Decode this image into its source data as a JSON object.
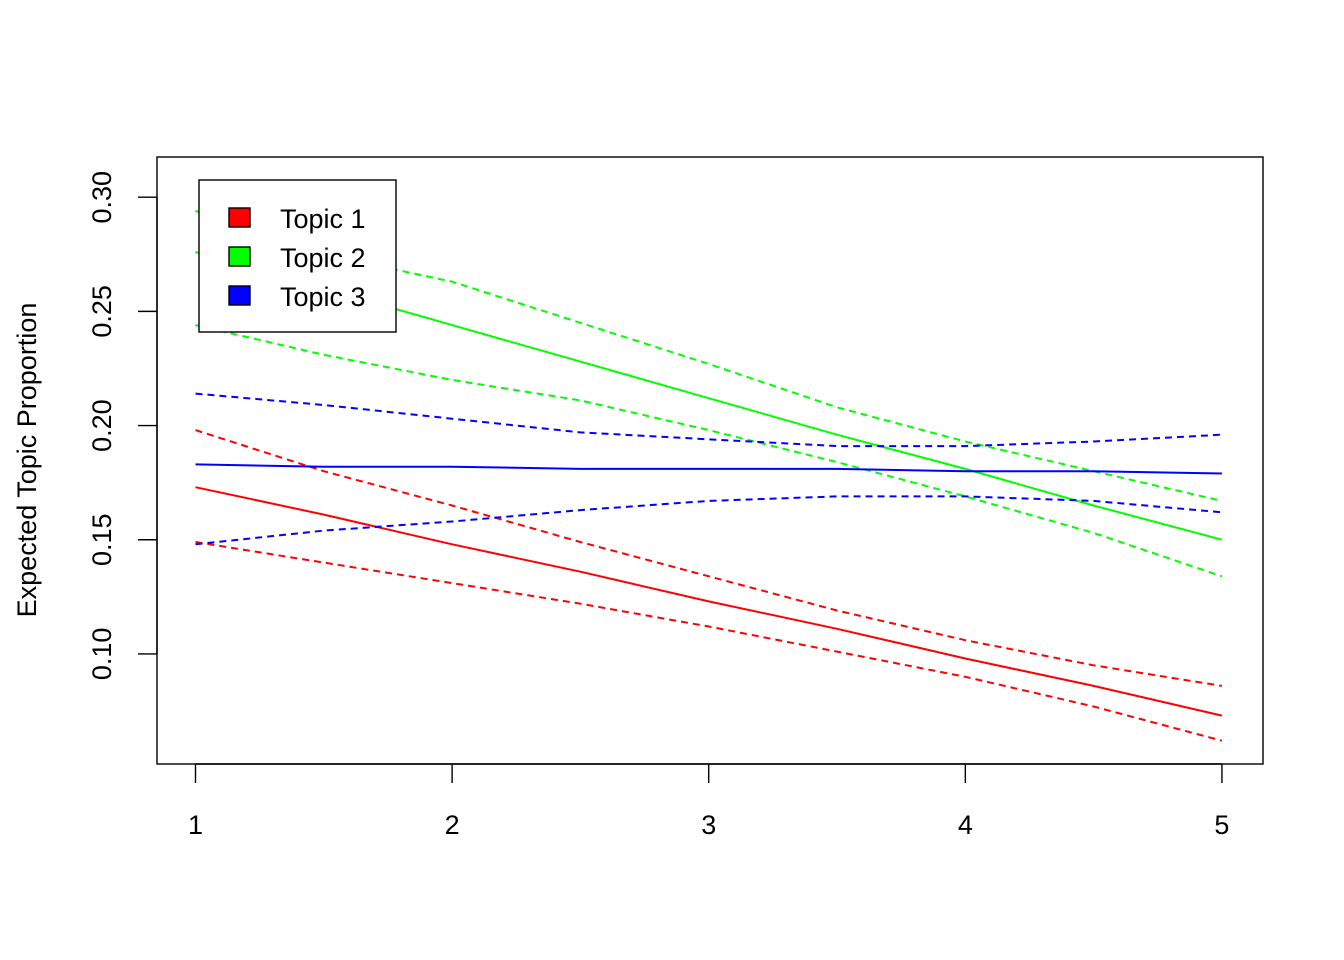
{
  "chart_data": {
    "type": "line",
    "title": "",
    "xlabel": "",
    "ylabel": "Expected Topic Proportion",
    "xlim": [
      0.85,
      5.16
    ],
    "ylim": [
      0.0518,
      0.3176
    ],
    "xticks": [
      1,
      2,
      3,
      4,
      5
    ],
    "xtick_labels": [
      "1",
      "2",
      "3",
      "4",
      "5"
    ],
    "yticks": [
      0.1,
      0.15,
      0.2,
      0.25,
      0.3
    ],
    "ytick_labels": [
      "0.10",
      "0.15",
      "0.20",
      "0.25",
      "0.30"
    ],
    "grid": false,
    "legend_position": "top-left",
    "x": [
      1,
      1.5,
      2,
      2.5,
      3,
      3.5,
      4,
      4.5,
      5
    ],
    "series": [
      {
        "name": "Topic 1",
        "color": "#ff0000",
        "values": [
          0.173,
          0.161,
          0.148,
          0.136,
          0.123,
          0.111,
          0.098,
          0.086,
          0.073
        ],
        "upper": [
          0.198,
          0.18,
          0.165,
          0.149,
          0.134,
          0.119,
          0.106,
          0.095,
          0.086
        ],
        "lower": [
          0.149,
          0.14,
          0.131,
          0.122,
          0.112,
          0.101,
          0.09,
          0.077,
          0.062
        ]
      },
      {
        "name": "Topic 2",
        "color": "#00ff00",
        "values": [
          0.276,
          0.26,
          0.244,
          0.228,
          0.212,
          0.196,
          0.181,
          0.165,
          0.15
        ],
        "upper": [
          0.294,
          0.275,
          0.263,
          0.245,
          0.227,
          0.208,
          0.193,
          0.18,
          0.167
        ],
        "lower": [
          0.244,
          0.231,
          0.22,
          0.211,
          0.198,
          0.184,
          0.169,
          0.153,
          0.134
        ]
      },
      {
        "name": "Topic 3",
        "color": "#0000ff",
        "values": [
          0.183,
          0.182,
          0.182,
          0.181,
          0.181,
          0.181,
          0.18,
          0.18,
          0.179
        ],
        "upper": [
          0.214,
          0.209,
          0.203,
          0.197,
          0.194,
          0.191,
          0.191,
          0.193,
          0.196
        ],
        "lower": [
          0.148,
          0.154,
          0.158,
          0.163,
          0.167,
          0.169,
          0.169,
          0.167,
          0.162
        ]
      }
    ]
  }
}
